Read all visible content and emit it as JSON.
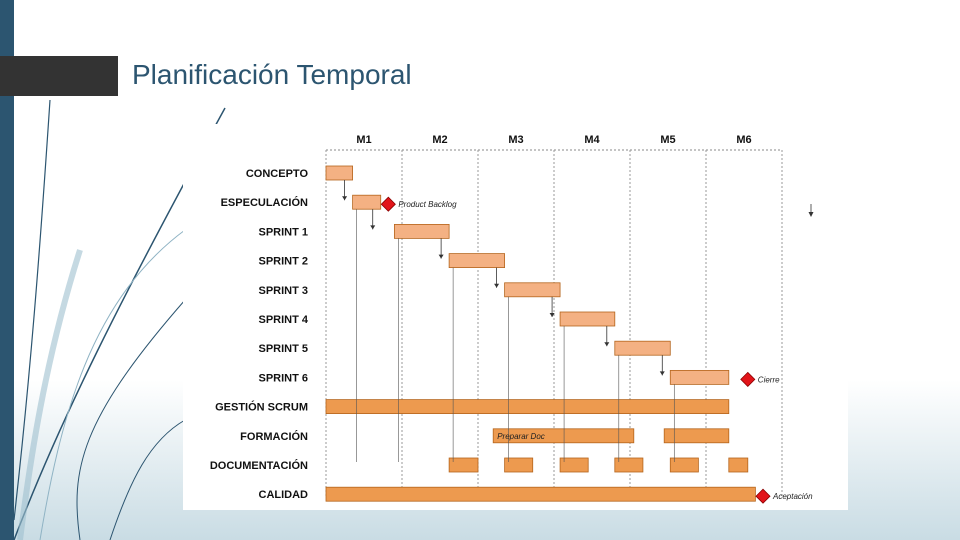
{
  "slide": {
    "title": "Planificación Temporal"
  },
  "colors": {
    "accent": "#2c5570",
    "bar_light": "#f4b183",
    "bar_dark": "#ed9a4f",
    "bar_stroke": "#b5651d",
    "milestone": "#e2141a"
  },
  "chart_data": {
    "type": "gantt",
    "months": [
      "M1",
      "M2",
      "M3",
      "M4",
      "M5",
      "M6"
    ],
    "tasks": [
      {
        "label": "CONCEPTO",
        "bars": [
          [
            0.0,
            0.35
          ]
        ],
        "style": "light"
      },
      {
        "label": "ESPECULACIÓN",
        "bars": [
          [
            0.35,
            0.72
          ]
        ],
        "style": "light"
      },
      {
        "label": "SPRINT 1",
        "bars": [
          [
            0.9,
            1.62
          ]
        ],
        "style": "light"
      },
      {
        "label": "SPRINT 2",
        "bars": [
          [
            1.62,
            2.35
          ]
        ],
        "style": "light"
      },
      {
        "label": "SPRINT 3",
        "bars": [
          [
            2.35,
            3.08
          ]
        ],
        "style": "light"
      },
      {
        "label": "SPRINT 4",
        "bars": [
          [
            3.08,
            3.8
          ]
        ],
        "style": "light"
      },
      {
        "label": "SPRINT 5",
        "bars": [
          [
            3.8,
            4.53
          ]
        ],
        "style": "light"
      },
      {
        "label": "SPRINT 6",
        "bars": [
          [
            4.53,
            5.3
          ]
        ],
        "style": "light"
      },
      {
        "label": "GESTIÓN SCRUM",
        "bars": [
          [
            0.0,
            5.3
          ]
        ],
        "style": "dark"
      },
      {
        "label": "FORMACIÓN",
        "bars": [
          [
            2.2,
            4.05
          ],
          [
            4.45,
            5.3
          ]
        ],
        "style": "dark"
      },
      {
        "label": "DOCUMENTACIÓN",
        "bars": [
          [
            1.62,
            2.0
          ],
          [
            2.35,
            2.72
          ],
          [
            3.08,
            3.45
          ],
          [
            3.8,
            4.17
          ],
          [
            4.53,
            4.9
          ],
          [
            5.3,
            5.55
          ]
        ],
        "style": "dark"
      },
      {
        "label": "CALIDAD",
        "bars": [
          [
            0.0,
            5.65
          ]
        ],
        "style": "dark"
      }
    ],
    "milestones": [
      {
        "label": "Product Backlog",
        "row": 1,
        "x": 0.82
      },
      {
        "label": "Cierre",
        "row": 7,
        "x": 5.55
      },
      {
        "label": "Aceptación",
        "row": 11,
        "x": 5.75
      }
    ],
    "annotations": [
      {
        "label": "Preparar Doc",
        "row": 9,
        "x": 2.2
      }
    ]
  }
}
